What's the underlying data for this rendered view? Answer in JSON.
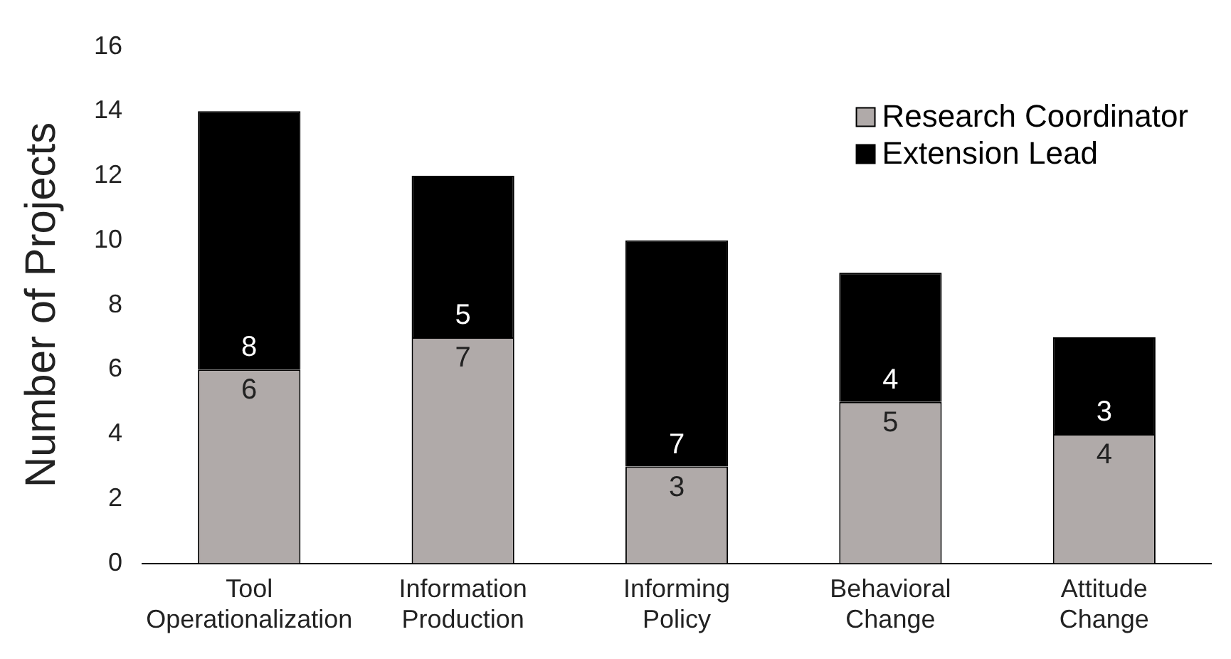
{
  "chart_data": {
    "type": "bar",
    "ylabel": "Number of Projects",
    "categories": [
      "Tool Operationalization",
      "Information Production",
      "Informing Policy",
      "Behavioral Change",
      "Attitude Change"
    ],
    "stacked": true,
    "series": [
      {
        "name": "Research Coordinator",
        "color": "#b0aaa9",
        "values": [
          6,
          7,
          3,
          5,
          4
        ]
      },
      {
        "name": "Extension Lead",
        "color": "#000000",
        "values": [
          8,
          5,
          7,
          4,
          3
        ]
      }
    ],
    "ylim": [
      0,
      16
    ],
    "yticks": [
      0,
      2,
      4,
      6,
      8,
      10,
      12,
      14,
      16
    ],
    "grid": false,
    "legend": "top right",
    "data_labels": true
  }
}
